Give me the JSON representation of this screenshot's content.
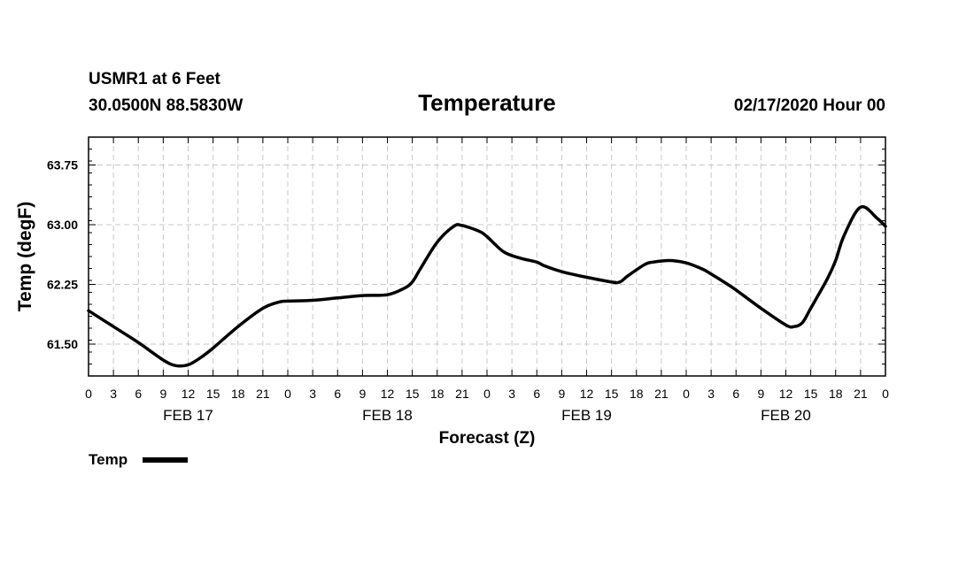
{
  "header": {
    "station": "USMR1 at 6 Feet",
    "coords": "30.0500N 88.5830W",
    "title": "Temperature",
    "run": "02/17/2020 Hour 00"
  },
  "legend": {
    "label": "Temp",
    "color": "#000000"
  },
  "chart_data": {
    "type": "line",
    "title": "Temperature",
    "xlabel": "Forecast (Z)",
    "ylabel": "Temp (degF)",
    "xlim": [
      0,
      96
    ],
    "ylim": [
      61.1,
      64.1
    ],
    "yticks": [
      61.5,
      62.25,
      63.0,
      63.75
    ],
    "ytick_labels": [
      "61.50",
      "62.25",
      "63.00",
      "63.75"
    ],
    "ytick_minor_step": 0.15,
    "xtick_step_hours": 3,
    "xtick_labels": [
      "0",
      "3",
      "6",
      "9",
      "12",
      "15",
      "18",
      "21",
      "0",
      "3",
      "6",
      "9",
      "12",
      "15",
      "18",
      "21",
      "0",
      "3",
      "6",
      "9",
      "12",
      "15",
      "18",
      "21",
      "0",
      "3",
      "6",
      "9",
      "12",
      "15",
      "18",
      "21",
      "0"
    ],
    "day_labels": [
      {
        "hour": 12,
        "label": "FEB 17"
      },
      {
        "hour": 36,
        "label": "FEB 18"
      },
      {
        "hour": 60,
        "label": "FEB 19"
      },
      {
        "hour": 84,
        "label": "FEB 20"
      }
    ],
    "grid": true,
    "legend_position": "bottom-left",
    "series": [
      {
        "name": "Temp",
        "color": "#000000",
        "x": [
          0,
          3,
          6,
          9,
          10.5,
          12,
          13.5,
          15,
          18,
          21,
          23,
          24,
          27,
          30,
          33,
          36,
          38,
          39,
          40,
          42,
          44,
          45,
          47,
          48,
          50,
          52,
          54,
          55,
          57,
          60,
          63,
          64,
          65,
          67,
          68,
          70,
          72,
          74,
          75,
          77,
          78,
          81,
          84,
          85,
          86,
          87,
          89,
          90,
          91,
          93,
          95,
          96
        ],
        "y": [
          61.92,
          61.72,
          61.52,
          61.3,
          61.23,
          61.24,
          61.33,
          61.45,
          61.72,
          61.95,
          62.03,
          62.04,
          62.05,
          62.08,
          62.11,
          62.12,
          62.2,
          62.28,
          62.45,
          62.78,
          62.98,
          62.99,
          62.92,
          62.85,
          62.66,
          62.58,
          62.53,
          62.48,
          62.41,
          62.34,
          62.28,
          62.28,
          62.36,
          62.5,
          62.53,
          62.55,
          62.52,
          62.44,
          62.38,
          62.25,
          62.18,
          61.95,
          61.74,
          61.72,
          61.77,
          61.95,
          62.32,
          62.55,
          62.86,
          63.22,
          63.08,
          62.98
        ]
      }
    ]
  }
}
